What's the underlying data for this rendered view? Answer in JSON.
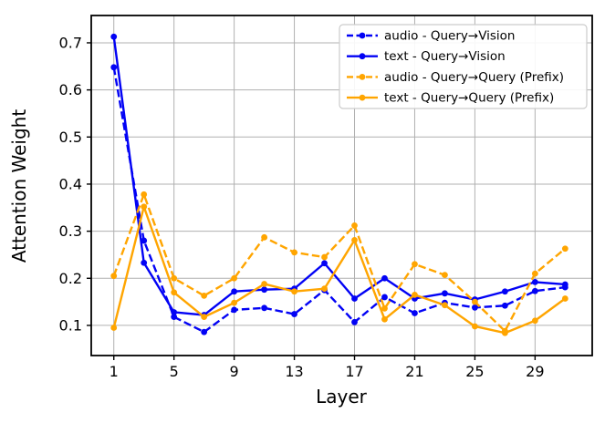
{
  "figure": {
    "background": "#ffffff",
    "plot_background": "#ffffff",
    "grid_color": "#b0b0b0",
    "spine_color": "#000000"
  },
  "chart_data": {
    "type": "line",
    "title": "",
    "xlabel": "Layer",
    "ylabel": "Attention Weight",
    "grid": true,
    "legend_position": "upper right",
    "xlim": [
      -0.5,
      32.8
    ],
    "ylim": [
      0.036,
      0.758
    ],
    "x_ticks": [
      1,
      5,
      9,
      13,
      17,
      21,
      25,
      29
    ],
    "y_ticks": [
      0.1,
      0.2,
      0.3,
      0.4,
      0.5,
      0.6,
      0.7
    ],
    "y_tick_labels": [
      "0.1",
      "0.2",
      "0.3",
      "0.4",
      "0.5",
      "0.6",
      "0.7"
    ],
    "x": [
      1,
      3,
      5,
      7,
      9,
      11,
      13,
      15,
      17,
      19,
      21,
      23,
      25,
      27,
      29,
      31
    ],
    "series": [
      {
        "name": "audio - Query→Vision",
        "color": "#0202f5",
        "style": "dashed",
        "values": [
          0.648,
          0.28,
          0.118,
          0.086,
          0.133,
          0.137,
          0.124,
          0.175,
          0.107,
          0.16,
          0.126,
          0.148,
          0.138,
          0.142,
          0.173,
          0.181
        ]
      },
      {
        "name": "text - Query→Vision",
        "color": "#0202f5",
        "style": "solid",
        "values": [
          0.713,
          0.233,
          0.128,
          0.122,
          0.172,
          0.176,
          0.178,
          0.232,
          0.157,
          0.2,
          0.157,
          0.168,
          0.155,
          0.172,
          0.192,
          0.187
        ]
      },
      {
        "name": "audio - Query→Query (Prefix)",
        "color": "#ffa500",
        "style": "dashed",
        "values": [
          0.205,
          0.378,
          0.2,
          0.163,
          0.2,
          0.287,
          0.255,
          0.245,
          0.312,
          0.136,
          0.23,
          0.207,
          0.15,
          0.088,
          0.21,
          0.263
        ]
      },
      {
        "name": "text - Query→Query (Prefix)",
        "color": "#ffa500",
        "style": "solid",
        "values": [
          0.095,
          0.352,
          0.17,
          0.118,
          0.148,
          0.188,
          0.172,
          0.178,
          0.281,
          0.113,
          0.165,
          0.143,
          0.098,
          0.084,
          0.11,
          0.157
        ]
      }
    ]
  }
}
